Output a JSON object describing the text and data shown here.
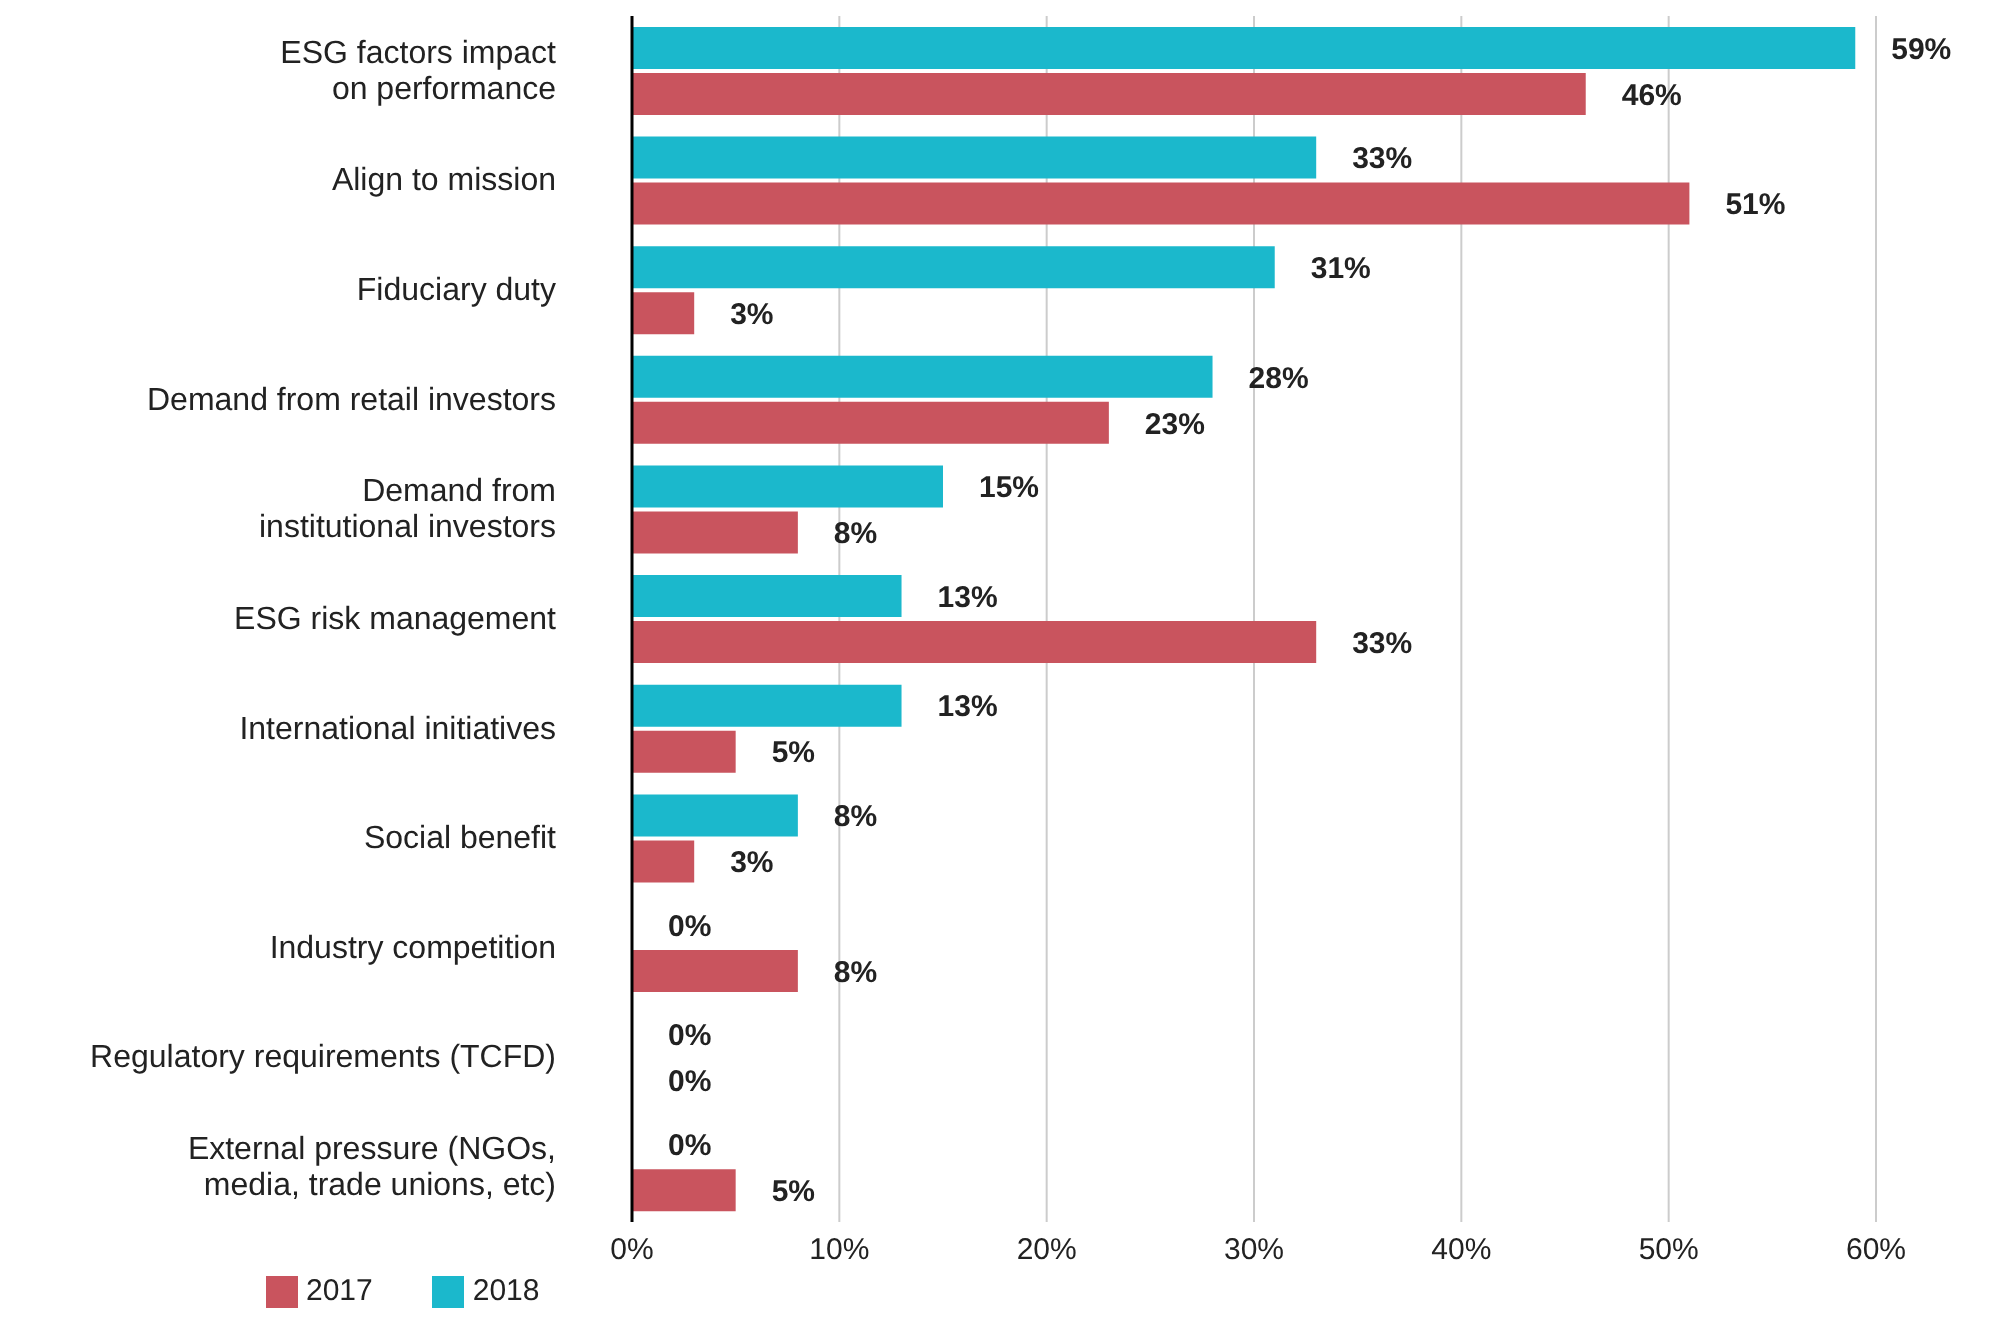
{
  "chart_data": {
    "type": "bar",
    "orientation": "horizontal",
    "categories": [
      "ESG factors impact on performance",
      "Align to mission",
      "Fiduciary duty",
      "Demand from retail investors",
      "Demand from institutional investors",
      "ESG risk management",
      "International initiatives",
      "Social benefit",
      "Industry competition",
      "Regulatory requirements (TCFD)",
      "External pressure (NGOs, media, trade unions, etc)"
    ],
    "series": [
      {
        "name": "2018",
        "color": "#1bb8cc",
        "values": [
          59,
          33,
          31,
          28,
          15,
          13,
          13,
          8,
          0,
          0,
          0
        ],
        "value_labels": [
          "59%",
          "33%",
          "31%",
          "28%",
          "15%",
          "13%",
          "13%",
          "8%",
          "0%",
          "0%",
          "0%"
        ]
      },
      {
        "name": "2017",
        "color": "#c9545e",
        "values": [
          46,
          51,
          3,
          23,
          8,
          33,
          5,
          3,
          8,
          0,
          5
        ],
        "value_labels": [
          "46%",
          "51%",
          "3%",
          "23%",
          "8%",
          "33%",
          "5%",
          "3%",
          "8%",
          "0%",
          "5%"
        ]
      }
    ],
    "xlim": [
      0,
      60
    ],
    "xticks": [
      {
        "value": 0,
        "label": "0%"
      },
      {
        "value": 10,
        "label": "10%"
      },
      {
        "value": 20,
        "label": "20%"
      },
      {
        "value": 30,
        "label": "30%"
      },
      {
        "value": 40,
        "label": "40%"
      },
      {
        "value": 50,
        "label": "50%"
      },
      {
        "value": 60,
        "label": "60%"
      }
    ],
    "grid": "x",
    "legend": "bottom left"
  }
}
